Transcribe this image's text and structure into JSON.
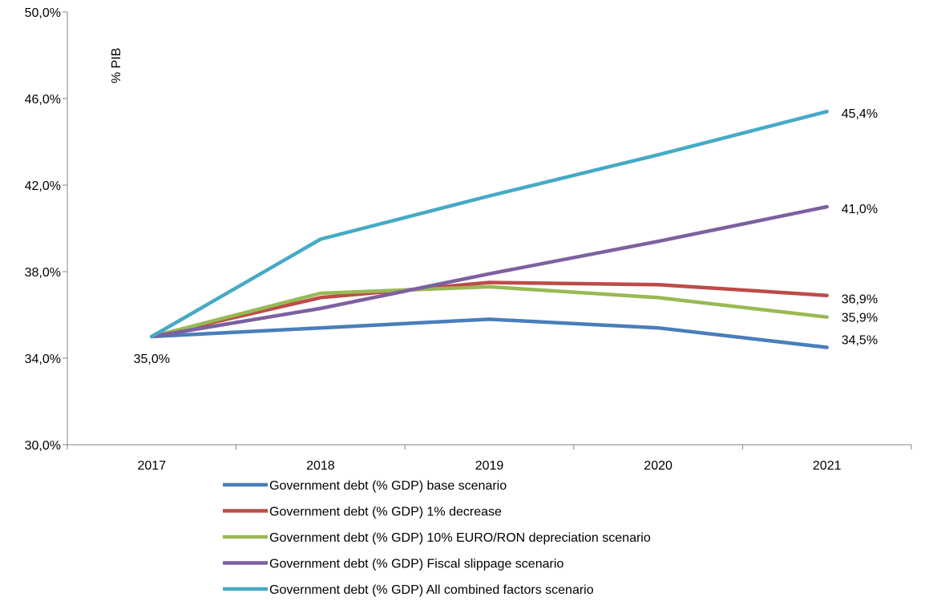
{
  "chart_data": {
    "type": "line",
    "ylabel": "% PIB",
    "xlabel": "",
    "title": "",
    "categories": [
      "2017",
      "2018",
      "2019",
      "2020",
      "2021"
    ],
    "ylim": [
      30,
      50
    ],
    "yticks": [
      30,
      34,
      38,
      42,
      46,
      50
    ],
    "ytick_labels": [
      "30,0%",
      "34,0%",
      "38,0%",
      "42,0%",
      "46,0%",
      "50,0%"
    ],
    "grid": false,
    "legend_position": "bottom",
    "series": [
      {
        "name": "Government debt (% GDP) base scenario",
        "color": "#4a7ebb",
        "values": [
          35.0,
          35.4,
          35.8,
          35.4,
          34.5
        ],
        "end_label": "34,5%"
      },
      {
        "name": "Government debt (% GDP) 1% decrease",
        "color": "#be4b48",
        "values": [
          35.0,
          36.8,
          37.5,
          37.4,
          36.9
        ],
        "end_label": "36,9%"
      },
      {
        "name": "Government debt (% GDP) 10% EURO/RON depreciation scenario",
        "color": "#98b954",
        "values": [
          35.0,
          37.0,
          37.3,
          36.8,
          35.9
        ],
        "end_label": "35,9%"
      },
      {
        "name": "Government debt (% GDP) Fiscal slippage scenario",
        "color": "#7d60a0",
        "values": [
          35.0,
          36.3,
          37.9,
          39.4,
          41.0
        ],
        "end_label": "41,0%"
      },
      {
        "name": "Government debt (% GDP) All combined factors scenario",
        "color": "#46aac5",
        "values": [
          35.0,
          39.5,
          41.5,
          43.4,
          45.4
        ],
        "end_label": "45,4%"
      }
    ],
    "start_label": "35,0%"
  }
}
